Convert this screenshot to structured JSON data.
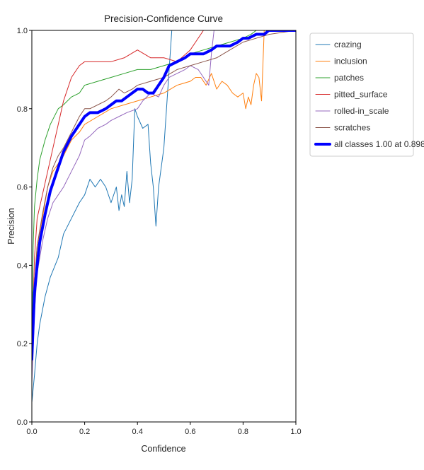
{
  "chart_data": {
    "type": "line",
    "title": "Precision-Confidence Curve",
    "xlabel": "Confidence",
    "ylabel": "Precision",
    "xlim": [
      0.0,
      1.0
    ],
    "ylim": [
      0.0,
      1.0
    ],
    "xticks": [
      "0.0",
      "0.2",
      "0.4",
      "0.6",
      "0.8",
      "1.0"
    ],
    "yticks": [
      "0.0",
      "0.2",
      "0.4",
      "0.6",
      "0.8",
      "1.0"
    ],
    "grid": false,
    "legend_position": "outside-right-top",
    "series": [
      {
        "name": "crazing",
        "color": "#1f77b4",
        "width": 1,
        "x": [
          0,
          0.01,
          0.02,
          0.03,
          0.05,
          0.07,
          0.1,
          0.12,
          0.15,
          0.18,
          0.2,
          0.22,
          0.24,
          0.26,
          0.28,
          0.3,
          0.32,
          0.33,
          0.34,
          0.35,
          0.36,
          0.37,
          0.38,
          0.39,
          0.4,
          0.42,
          0.44,
          0.45,
          0.46,
          0.47,
          0.48,
          0.49,
          0.5,
          0.51,
          0.52,
          0.53,
          1.0
        ],
        "y": [
          0.05,
          0.12,
          0.2,
          0.25,
          0.32,
          0.37,
          0.42,
          0.48,
          0.52,
          0.56,
          0.58,
          0.62,
          0.6,
          0.62,
          0.6,
          0.56,
          0.6,
          0.54,
          0.58,
          0.55,
          0.64,
          0.56,
          0.62,
          0.8,
          0.78,
          0.75,
          0.76,
          0.66,
          0.6,
          0.5,
          0.6,
          0.65,
          0.7,
          0.8,
          0.9,
          1.0,
          1.0
        ]
      },
      {
        "name": "inclusion",
        "color": "#ff7f0e",
        "width": 1,
        "x": [
          0,
          0.01,
          0.02,
          0.04,
          0.06,
          0.08,
          0.1,
          0.12,
          0.15,
          0.18,
          0.2,
          0.25,
          0.3,
          0.35,
          0.4,
          0.45,
          0.5,
          0.55,
          0.6,
          0.62,
          0.64,
          0.66,
          0.68,
          0.7,
          0.72,
          0.74,
          0.76,
          0.78,
          0.8,
          0.81,
          0.82,
          0.83,
          0.84,
          0.85,
          0.86,
          0.87,
          0.88,
          1.0
        ],
        "y": [
          0.15,
          0.35,
          0.45,
          0.52,
          0.6,
          0.64,
          0.66,
          0.68,
          0.72,
          0.74,
          0.76,
          0.78,
          0.8,
          0.81,
          0.82,
          0.83,
          0.84,
          0.86,
          0.87,
          0.88,
          0.88,
          0.86,
          0.89,
          0.85,
          0.87,
          0.86,
          0.84,
          0.83,
          0.84,
          0.8,
          0.83,
          0.81,
          0.86,
          0.89,
          0.88,
          0.82,
          1.0,
          1.0
        ]
      },
      {
        "name": "patches",
        "color": "#2ca02c",
        "width": 1,
        "x": [
          0,
          0.005,
          0.01,
          0.02,
          0.03,
          0.05,
          0.07,
          0.1,
          0.12,
          0.15,
          0.18,
          0.2,
          0.25,
          0.3,
          0.35,
          0.4,
          0.45,
          0.5,
          0.55,
          0.6,
          0.65,
          0.7,
          0.75,
          0.8,
          0.83,
          0.85,
          1.0
        ],
        "y": [
          0.2,
          0.45,
          0.55,
          0.62,
          0.67,
          0.72,
          0.76,
          0.8,
          0.81,
          0.83,
          0.84,
          0.86,
          0.87,
          0.88,
          0.89,
          0.9,
          0.9,
          0.91,
          0.92,
          0.94,
          0.95,
          0.96,
          0.97,
          0.98,
          0.99,
          1.0,
          1.0
        ]
      },
      {
        "name": "pitted_surface",
        "color": "#d62728",
        "width": 1,
        "x": [
          0,
          0.005,
          0.01,
          0.02,
          0.04,
          0.06,
          0.08,
          0.1,
          0.12,
          0.15,
          0.18,
          0.2,
          0.25,
          0.3,
          0.35,
          0.4,
          0.45,
          0.5,
          0.55,
          0.6,
          0.62,
          0.65,
          1.0
        ],
        "y": [
          0.12,
          0.3,
          0.42,
          0.52,
          0.58,
          0.64,
          0.7,
          0.76,
          0.82,
          0.88,
          0.91,
          0.92,
          0.92,
          0.92,
          0.93,
          0.95,
          0.93,
          0.93,
          0.92,
          0.95,
          0.97,
          1.0,
          1.0
        ]
      },
      {
        "name": "rolled-in_scale",
        "color": "#9467bd",
        "width": 1,
        "x": [
          0,
          0.01,
          0.02,
          0.04,
          0.06,
          0.08,
          0.1,
          0.12,
          0.15,
          0.18,
          0.2,
          0.22,
          0.25,
          0.28,
          0.3,
          0.33,
          0.36,
          0.4,
          0.42,
          0.45,
          0.48,
          0.5,
          0.52,
          0.55,
          0.58,
          0.6,
          0.63,
          0.65,
          0.67,
          0.68,
          0.69,
          0.7,
          1.0
        ],
        "y": [
          0.1,
          0.28,
          0.38,
          0.46,
          0.52,
          0.56,
          0.58,
          0.6,
          0.64,
          0.68,
          0.72,
          0.73,
          0.75,
          0.76,
          0.77,
          0.78,
          0.79,
          0.8,
          0.82,
          0.84,
          0.83,
          0.86,
          0.88,
          0.89,
          0.9,
          0.91,
          0.9,
          0.88,
          0.86,
          0.94,
          1.0,
          1.0,
          1.0
        ]
      },
      {
        "name": "scratches",
        "color": "#8c564b",
        "width": 1,
        "x": [
          0,
          0.01,
          0.02,
          0.04,
          0.06,
          0.08,
          0.1,
          0.12,
          0.15,
          0.18,
          0.2,
          0.22,
          0.25,
          0.28,
          0.3,
          0.33,
          0.35,
          0.38,
          0.4,
          0.45,
          0.5,
          0.55,
          0.6,
          0.65,
          0.7,
          0.75,
          0.8,
          0.85,
          0.9,
          1.0
        ],
        "y": [
          0.15,
          0.35,
          0.45,
          0.53,
          0.6,
          0.65,
          0.68,
          0.7,
          0.74,
          0.78,
          0.8,
          0.8,
          0.81,
          0.82,
          0.83,
          0.85,
          0.84,
          0.85,
          0.86,
          0.87,
          0.88,
          0.9,
          0.91,
          0.92,
          0.93,
          0.95,
          0.97,
          0.98,
          0.99,
          1.0
        ]
      },
      {
        "name": "all classes 1.00 at 0.898",
        "color": "#0000ff",
        "width": 4,
        "x": [
          0,
          0.005,
          0.01,
          0.02,
          0.03,
          0.05,
          0.07,
          0.1,
          0.12,
          0.15,
          0.18,
          0.2,
          0.22,
          0.25,
          0.28,
          0.3,
          0.32,
          0.34,
          0.36,
          0.38,
          0.4,
          0.42,
          0.44,
          0.46,
          0.48,
          0.5,
          0.52,
          0.55,
          0.58,
          0.6,
          0.62,
          0.65,
          0.68,
          0.7,
          0.72,
          0.75,
          0.78,
          0.8,
          0.82,
          0.85,
          0.88,
          0.898,
          0.92,
          0.95,
          1.0
        ],
        "y": [
          0.16,
          0.25,
          0.33,
          0.4,
          0.46,
          0.53,
          0.59,
          0.65,
          0.69,
          0.73,
          0.76,
          0.78,
          0.79,
          0.79,
          0.8,
          0.81,
          0.82,
          0.82,
          0.83,
          0.84,
          0.85,
          0.85,
          0.84,
          0.84,
          0.86,
          0.88,
          0.91,
          0.92,
          0.93,
          0.94,
          0.94,
          0.94,
          0.95,
          0.96,
          0.96,
          0.96,
          0.97,
          0.98,
          0.98,
          0.99,
          0.99,
          1.0,
          1.0,
          1.0,
          1.0
        ]
      }
    ]
  }
}
